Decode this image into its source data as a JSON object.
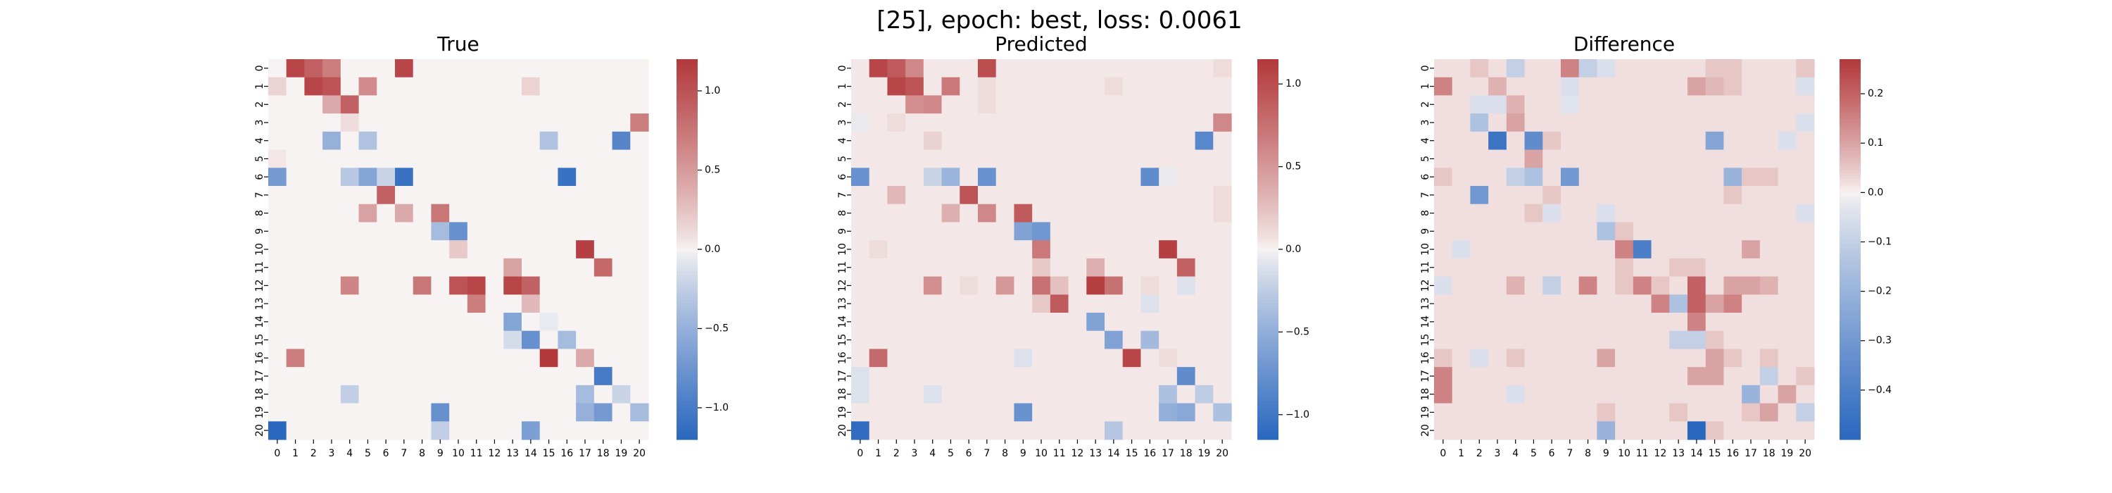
{
  "suptitle": "[25], epoch: best, loss: 0.0061",
  "colors": {
    "neg": "#2a67bf",
    "mid": "#f7f3f2",
    "pos": "#b3383b"
  },
  "chart_data": [
    {
      "type": "heatmap",
      "title": "True",
      "ticks": [
        "0",
        "1",
        "2",
        "3",
        "4",
        "5",
        "6",
        "7",
        "8",
        "9",
        "10",
        "11",
        "12",
        "13",
        "14",
        "15",
        "16",
        "17",
        "18",
        "19",
        "20"
      ],
      "vmin": -1.2,
      "vmax": 1.2,
      "colorbar_ticks": [
        {
          "value": 1.0,
          "label": "1.0"
        },
        {
          "value": 0.5,
          "label": "0.5"
        },
        {
          "value": 0.0,
          "label": "0.0"
        },
        {
          "value": -0.5,
          "label": "−0.5"
        },
        {
          "value": -1.0,
          "label": "−1.0"
        }
      ],
      "background": 0.0,
      "cells": [
        [
          0,
          1,
          1.1
        ],
        [
          0,
          2,
          0.9
        ],
        [
          0,
          3,
          0.7
        ],
        [
          0,
          7,
          1.1
        ],
        [
          1,
          0,
          0.15
        ],
        [
          1,
          2,
          1.1
        ],
        [
          1,
          3,
          1.0
        ],
        [
          1,
          5,
          0.6
        ],
        [
          1,
          14,
          0.15
        ],
        [
          2,
          3,
          0.4
        ],
        [
          2,
          4,
          0.9
        ],
        [
          3,
          4,
          0.1
        ],
        [
          3,
          20,
          0.7
        ],
        [
          4,
          3,
          -0.5
        ],
        [
          4,
          5,
          -0.35
        ],
        [
          4,
          15,
          -0.35
        ],
        [
          4,
          19,
          -0.9
        ],
        [
          5,
          0,
          0.05
        ],
        [
          6,
          0,
          -0.7
        ],
        [
          6,
          4,
          -0.3
        ],
        [
          6,
          5,
          -0.6
        ],
        [
          6,
          6,
          -0.2
        ],
        [
          6,
          7,
          -1.1
        ],
        [
          6,
          16,
          -1.1
        ],
        [
          7,
          6,
          0.9
        ],
        [
          8,
          5,
          0.45
        ],
        [
          8,
          7,
          0.4
        ],
        [
          8,
          9,
          0.75
        ],
        [
          9,
          9,
          -0.4
        ],
        [
          9,
          10,
          -0.8
        ],
        [
          10,
          10,
          0.2
        ],
        [
          10,
          17,
          1.15
        ],
        [
          11,
          13,
          0.45
        ],
        [
          11,
          18,
          0.85
        ],
        [
          12,
          4,
          0.65
        ],
        [
          12,
          8,
          0.75
        ],
        [
          12,
          10,
          1.0
        ],
        [
          12,
          11,
          1.1
        ],
        [
          12,
          13,
          1.1
        ],
        [
          12,
          14,
          0.9
        ],
        [
          13,
          11,
          0.7
        ],
        [
          13,
          14,
          0.3
        ],
        [
          14,
          13,
          -0.6
        ],
        [
          14,
          15,
          -0.05
        ],
        [
          15,
          13,
          -0.15
        ],
        [
          15,
          14,
          -0.8
        ],
        [
          15,
          16,
          -0.4
        ],
        [
          16,
          1,
          0.7
        ],
        [
          16,
          15,
          1.2
        ],
        [
          16,
          17,
          0.4
        ],
        [
          17,
          18,
          -1.0
        ],
        [
          18,
          4,
          -0.25
        ],
        [
          18,
          17,
          -0.4
        ],
        [
          18,
          19,
          -0.2
        ],
        [
          19,
          9,
          -0.8
        ],
        [
          19,
          17,
          -0.5
        ],
        [
          19,
          18,
          -0.7
        ],
        [
          19,
          20,
          -0.4
        ],
        [
          20,
          0,
          -1.2
        ],
        [
          20,
          9,
          -0.25
        ],
        [
          20,
          14,
          -0.65
        ]
      ]
    },
    {
      "type": "heatmap",
      "title": "Predicted",
      "ticks": [
        "0",
        "1",
        "2",
        "3",
        "4",
        "5",
        "6",
        "7",
        "8",
        "9",
        "10",
        "11",
        "12",
        "13",
        "14",
        "15",
        "16",
        "17",
        "18",
        "19",
        "20"
      ],
      "vmin": -1.15,
      "vmax": 1.15,
      "colorbar_ticks": [
        {
          "value": 1.0,
          "label": "1.0"
        },
        {
          "value": 0.5,
          "label": "0.5"
        },
        {
          "value": 0.0,
          "label": "0.0"
        },
        {
          "value": -0.5,
          "label": "−0.5"
        },
        {
          "value": -1.0,
          "label": "−1.0"
        }
      ],
      "background": 0.04,
      "cells": [
        [
          0,
          1,
          1.05
        ],
        [
          0,
          2,
          0.9
        ],
        [
          0,
          3,
          0.6
        ],
        [
          0,
          7,
          1.0
        ],
        [
          0,
          20,
          0.1
        ],
        [
          1,
          2,
          1.05
        ],
        [
          1,
          3,
          0.95
        ],
        [
          1,
          5,
          0.7
        ],
        [
          1,
          7,
          0.1
        ],
        [
          1,
          14,
          0.1
        ],
        [
          2,
          3,
          0.55
        ],
        [
          2,
          4,
          0.6
        ],
        [
          2,
          7,
          0.1
        ],
        [
          3,
          0,
          -0.05
        ],
        [
          3,
          2,
          0.1
        ],
        [
          3,
          20,
          0.6
        ],
        [
          4,
          4,
          0.15
        ],
        [
          4,
          19,
          -0.85
        ],
        [
          6,
          0,
          -0.75
        ],
        [
          6,
          4,
          -0.2
        ],
        [
          6,
          5,
          -0.45
        ],
        [
          6,
          7,
          -0.75
        ],
        [
          6,
          16,
          -0.8
        ],
        [
          6,
          17,
          -0.05
        ],
        [
          7,
          2,
          0.3
        ],
        [
          7,
          6,
          0.95
        ],
        [
          7,
          20,
          0.1
        ],
        [
          8,
          5,
          0.35
        ],
        [
          8,
          7,
          0.6
        ],
        [
          8,
          9,
          0.9
        ],
        [
          8,
          20,
          0.1
        ],
        [
          9,
          9,
          -0.6
        ],
        [
          9,
          10,
          -0.7
        ],
        [
          10,
          1,
          0.1
        ],
        [
          10,
          10,
          0.7
        ],
        [
          10,
          17,
          1.1
        ],
        [
          11,
          10,
          0.2
        ],
        [
          11,
          13,
          0.35
        ],
        [
          11,
          18,
          0.85
        ],
        [
          12,
          4,
          0.55
        ],
        [
          12,
          6,
          0.1
        ],
        [
          12,
          8,
          0.5
        ],
        [
          12,
          10,
          0.75
        ],
        [
          12,
          11,
          0.25
        ],
        [
          12,
          13,
          1.1
        ],
        [
          12,
          14,
          0.75
        ],
        [
          12,
          16,
          0.1
        ],
        [
          12,
          18,
          -0.1
        ],
        [
          13,
          10,
          0.2
        ],
        [
          13,
          11,
          0.9
        ],
        [
          13,
          16,
          -0.1
        ],
        [
          14,
          13,
          -0.6
        ],
        [
          15,
          14,
          -0.6
        ],
        [
          15,
          16,
          -0.4
        ],
        [
          16,
          1,
          0.8
        ],
        [
          16,
          9,
          -0.1
        ],
        [
          16,
          15,
          1.05
        ],
        [
          16,
          17,
          0.1
        ],
        [
          17,
          0,
          -0.1
        ],
        [
          17,
          18,
          -0.8
        ],
        [
          18,
          0,
          -0.1
        ],
        [
          18,
          4,
          -0.1
        ],
        [
          18,
          17,
          -0.35
        ],
        [
          18,
          19,
          -0.25
        ],
        [
          19,
          9,
          -0.75
        ],
        [
          19,
          17,
          -0.5
        ],
        [
          19,
          18,
          -0.55
        ],
        [
          19,
          20,
          -0.35
        ],
        [
          20,
          0,
          -1.1
        ],
        [
          20,
          14,
          -0.3
        ]
      ]
    },
    {
      "type": "heatmap",
      "title": "Difference",
      "ticks": [
        "0",
        "1",
        "2",
        "3",
        "4",
        "5",
        "6",
        "7",
        "8",
        "9",
        "10",
        "11",
        "12",
        "13",
        "14",
        "15",
        "16",
        "17",
        "18",
        "19",
        "20"
      ],
      "vmin": -0.5,
      "vmax": 0.27,
      "colorbar_ticks": [
        {
          "value": 0.2,
          "label": "0.2"
        },
        {
          "value": 0.1,
          "label": "0.1"
        },
        {
          "value": 0.0,
          "label": "0.0"
        },
        {
          "value": -0.1,
          "label": "−0.1"
        },
        {
          "value": -0.2,
          "label": "−0.2"
        },
        {
          "value": -0.3,
          "label": "−0.3"
        },
        {
          "value": -0.4,
          "label": "−0.4"
        }
      ],
      "background": 0.02,
      "cells": [
        [
          0,
          2,
          0.05
        ],
        [
          0,
          4,
          -0.1
        ],
        [
          0,
          7,
          0.15
        ],
        [
          0,
          8,
          -0.1
        ],
        [
          0,
          9,
          -0.05
        ],
        [
          0,
          15,
          0.05
        ],
        [
          0,
          16,
          0.05
        ],
        [
          0,
          20,
          0.05
        ],
        [
          1,
          0,
          0.15
        ],
        [
          1,
          3,
          0.08
        ],
        [
          1,
          7,
          -0.05
        ],
        [
          1,
          14,
          0.1
        ],
        [
          1,
          15,
          0.07
        ],
        [
          1,
          16,
          0.05
        ],
        [
          1,
          20,
          -0.05
        ],
        [
          2,
          2,
          -0.05
        ],
        [
          2,
          3,
          -0.05
        ],
        [
          2,
          4,
          0.08
        ],
        [
          2,
          7,
          -0.04
        ],
        [
          3,
          2,
          -0.15
        ],
        [
          3,
          4,
          0.1
        ],
        [
          3,
          20,
          -0.05
        ],
        [
          4,
          3,
          -0.45
        ],
        [
          4,
          5,
          -0.35
        ],
        [
          4,
          6,
          0.05
        ],
        [
          4,
          15,
          -0.25
        ],
        [
          4,
          19,
          -0.05
        ],
        [
          5,
          5,
          0.1
        ],
        [
          6,
          0,
          0.05
        ],
        [
          6,
          4,
          -0.1
        ],
        [
          6,
          5,
          -0.15
        ],
        [
          6,
          7,
          -0.3
        ],
        [
          6,
          16,
          -0.2
        ],
        [
          6,
          17,
          0.05
        ],
        [
          6,
          18,
          0.05
        ],
        [
          7,
          2,
          -0.3
        ],
        [
          7,
          6,
          0.05
        ],
        [
          7,
          16,
          0.05
        ],
        [
          8,
          5,
          0.05
        ],
        [
          8,
          6,
          -0.05
        ],
        [
          8,
          9,
          -0.05
        ],
        [
          8,
          20,
          -0.05
        ],
        [
          9,
          9,
          -0.15
        ],
        [
          9,
          10,
          0.05
        ],
        [
          10,
          1,
          -0.05
        ],
        [
          10,
          10,
          0.15
        ],
        [
          10,
          11,
          -0.4
        ],
        [
          10,
          17,
          0.1
        ],
        [
          11,
          10,
          0.05
        ],
        [
          11,
          13,
          0.05
        ],
        [
          11,
          14,
          0.05
        ],
        [
          12,
          0,
          -0.05
        ],
        [
          12,
          4,
          0.08
        ],
        [
          12,
          6,
          -0.1
        ],
        [
          12,
          8,
          0.15
        ],
        [
          12,
          10,
          0.05
        ],
        [
          12,
          11,
          0.15
        ],
        [
          12,
          12,
          0.05
        ],
        [
          12,
          14,
          0.2
        ],
        [
          12,
          16,
          0.1
        ],
        [
          12,
          17,
          0.1
        ],
        [
          12,
          18,
          0.08
        ],
        [
          13,
          12,
          0.15
        ],
        [
          13,
          13,
          -0.15
        ],
        [
          13,
          14,
          0.2
        ],
        [
          13,
          15,
          0.1
        ],
        [
          13,
          16,
          0.15
        ],
        [
          14,
          14,
          0.15
        ],
        [
          15,
          13,
          -0.1
        ],
        [
          15,
          14,
          -0.1
        ],
        [
          15,
          15,
          0.05
        ],
        [
          16,
          0,
          0.05
        ],
        [
          16,
          2,
          -0.05
        ],
        [
          16,
          4,
          0.05
        ],
        [
          16,
          9,
          0.1
        ],
        [
          16,
          15,
          0.1
        ],
        [
          16,
          16,
          0.05
        ],
        [
          16,
          18,
          0.05
        ],
        [
          17,
          0,
          0.15
        ],
        [
          17,
          14,
          0.1
        ],
        [
          17,
          15,
          0.1
        ],
        [
          17,
          18,
          -0.1
        ],
        [
          17,
          20,
          0.05
        ],
        [
          18,
          0,
          0.15
        ],
        [
          18,
          4,
          -0.05
        ],
        [
          18,
          17,
          -0.2
        ],
        [
          18,
          19,
          0.1
        ],
        [
          19,
          9,
          0.05
        ],
        [
          19,
          13,
          0.05
        ],
        [
          19,
          17,
          0.05
        ],
        [
          19,
          18,
          0.1
        ],
        [
          19,
          20,
          -0.1
        ],
        [
          20,
          9,
          -0.2
        ],
        [
          20,
          14,
          -0.5
        ],
        [
          20,
          15,
          0.05
        ]
      ]
    }
  ]
}
